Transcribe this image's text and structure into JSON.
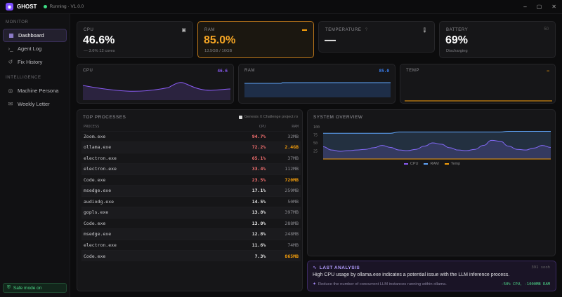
{
  "app": {
    "name": "GHOST",
    "status": "Running · V1.0.0",
    "logo_icon": "ghost-icon"
  },
  "window_controls": [
    "–",
    "▢",
    "✕"
  ],
  "sidebar": {
    "monitor_label": "MONITOR",
    "monitor_items": [
      {
        "label": "Dashboard",
        "icon": "grid-icon"
      },
      {
        "label": "Agent Log",
        "icon": "terminal-icon"
      },
      {
        "label": "Fix History",
        "icon": "history-icon"
      }
    ],
    "intelligence_label": "INTELLIGENCE",
    "intelligence_items": [
      {
        "label": "Machine Persona",
        "icon": "persona-icon"
      },
      {
        "label": "Weekly Letter",
        "icon": "mail-icon"
      }
    ],
    "safe_mode": "Safe mode on"
  },
  "stats": {
    "cpu": {
      "label": "CPU",
      "value": "46.6%",
      "sub": "— 3.6%  12 cores"
    },
    "ram": {
      "label": "RAM",
      "value": "85.0%",
      "sub": "13.5GB / 16GB"
    },
    "temp": {
      "label": "TEMPERATURE",
      "value": "—",
      "badge": "?"
    },
    "battery": {
      "label": "BATTERY",
      "value": "69%",
      "sub": "Discharging",
      "badge": "50"
    }
  },
  "mini_charts": {
    "cpu": {
      "label": "CPU",
      "value": "46.6",
      "color": "#8b5cf6"
    },
    "ram": {
      "label": "RAM",
      "value": "85.0",
      "color": "#3b82f6"
    },
    "temp": {
      "label": "TEMP",
      "value": "—",
      "color": "#f59e0b"
    }
  },
  "processes": {
    "title": "TOP PROCESSES",
    "note": "Genesis X Challenge project ro",
    "headers": [
      "PROCESS",
      "CPU",
      "RAM"
    ],
    "rows": [
      {
        "name": "Zoom.exe",
        "cpu": "94.7%",
        "ram": "32MB",
        "cpu_color": "#f87171",
        "ram_color": "#8a8a90"
      },
      {
        "name": "ollama.exe",
        "cpu": "72.2%",
        "ram": "2.4GB",
        "cpu_color": "#f87171",
        "ram_color": "#f59e0b"
      },
      {
        "name": "electron.exe",
        "cpu": "65.1%",
        "ram": "37MB",
        "cpu_color": "#f87171",
        "ram_color": "#8a8a90"
      },
      {
        "name": "electron.exe",
        "cpu": "33.4%",
        "ram": "112MB",
        "cpu_color": "#f87171",
        "ram_color": "#8a8a90"
      },
      {
        "name": "Code.exe",
        "cpu": "23.5%",
        "ram": "720MB",
        "cpu_color": "#f87171",
        "ram_color": "#f59e0b"
      },
      {
        "name": "msedge.exe",
        "cpu": "17.1%",
        "ram": "259MB",
        "cpu_color": "#e6e6e6",
        "ram_color": "#8a8a90"
      },
      {
        "name": "audiodg.exe",
        "cpu": "14.5%",
        "ram": "50MB",
        "cpu_color": "#e6e6e6",
        "ram_color": "#8a8a90"
      },
      {
        "name": "gopls.exe",
        "cpu": "13.8%",
        "ram": "397MB",
        "cpu_color": "#e6e6e6",
        "ram_color": "#8a8a90"
      },
      {
        "name": "Code.exe",
        "cpu": "13.0%",
        "ram": "288MB",
        "cpu_color": "#e6e6e6",
        "ram_color": "#8a8a90"
      },
      {
        "name": "msedge.exe",
        "cpu": "12.8%",
        "ram": "248MB",
        "cpu_color": "#e6e6e6",
        "ram_color": "#8a8a90"
      },
      {
        "name": "electron.exe",
        "cpu": "11.6%",
        "ram": "74MB",
        "cpu_color": "#e6e6e6",
        "ram_color": "#8a8a90"
      },
      {
        "name": "Code.exe",
        "cpu": "7.3%",
        "ram": "865MB",
        "cpu_color": "#e6e6e6",
        "ram_color": "#f59e0b"
      }
    ]
  },
  "system_overview": {
    "title": "SYSTEM OVERVIEW",
    "chart_data": {
      "type": "line",
      "yticks": [
        "100",
        "75",
        "50",
        "25"
      ],
      "ylim": [
        0,
        100
      ],
      "series": [
        {
          "name": "CPU",
          "color": "#8b5cf6",
          "values": [
            38,
            28,
            24,
            26,
            28,
            30,
            35,
            42,
            36,
            28,
            26,
            30,
            40,
            50,
            46,
            35,
            28,
            26,
            30,
            42,
            58,
            55,
            40,
            30,
            28,
            34,
            42,
            36
          ]
        },
        {
          "name": "RAM",
          "color": "#60a5fa",
          "values": [
            80,
            80,
            80,
            80,
            80,
            80,
            80,
            80,
            80,
            84,
            84,
            84,
            84,
            84,
            84,
            84,
            84,
            84,
            84,
            84,
            84,
            84,
            86,
            86,
            86,
            86,
            86,
            86
          ]
        },
        {
          "name": "Temp",
          "color": "#f59e0b",
          "values": [
            0,
            0,
            0,
            0,
            0,
            0,
            0,
            0,
            0,
            0,
            0,
            0,
            0,
            0,
            0,
            0,
            0,
            0,
            0,
            0,
            0,
            0,
            0,
            0,
            0,
            0,
            0,
            0
          ]
        }
      ]
    }
  },
  "analysis": {
    "title": "LAST ANALYSIS",
    "age": "391 sooh",
    "message": "High CPU usage by ollama.exe indicates a potential issue with the LLM inference process.",
    "fix": "Reduce the number of concurrent LLM instances running within ollama.",
    "impact": "-50% CPU, -1000MB RAM"
  }
}
